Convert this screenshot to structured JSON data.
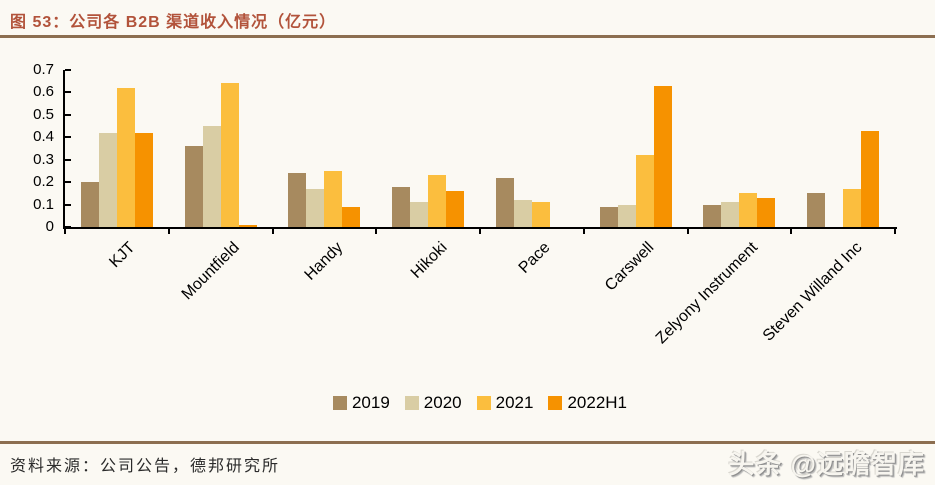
{
  "figure": {
    "title": "图 53：公司各 B2B 渠道收入情况（亿元）",
    "source_note": "资料来源：公司公告，德邦研究所",
    "watermark": "头条 @远瞻智库"
  },
  "colors": {
    "title": "#B2533B",
    "rule": "#8C6E50",
    "background": "#FBF9F3",
    "axis": "#000000"
  },
  "chart_data": {
    "type": "bar",
    "title": "公司各 B2B 渠道收入情况（亿元）",
    "categories": [
      "KJT",
      "Mountfield",
      "Handy",
      "Hikoki",
      "Pace",
      "Carswell",
      "Zelyony Instrument",
      "Steven Willand Inc"
    ],
    "series": [
      {
        "name": "2019",
        "color": "#A78A5F",
        "values": [
          0.2,
          0.36,
          0.24,
          0.18,
          0.22,
          0.09,
          0.1,
          0.15
        ]
      },
      {
        "name": "2020",
        "color": "#D9CDA4",
        "values": [
          0.42,
          0.45,
          0.17,
          0.11,
          0.12,
          0.1,
          0.11,
          0
        ]
      },
      {
        "name": "2021",
        "color": "#FBBE3E",
        "values": [
          0.62,
          0.64,
          0.25,
          0.23,
          0.11,
          0.32,
          0.15,
          0.17
        ]
      },
      {
        "name": "2022H1",
        "color": "#F69200",
        "values": [
          0.42,
          0.01,
          0.09,
          0.16,
          0,
          0.63,
          0.13,
          0.43
        ]
      }
    ],
    "ylim": [
      0,
      0.7
    ],
    "yticks": [
      0,
      0.1,
      0.2,
      0.3,
      0.4,
      0.5,
      0.6,
      0.7
    ],
    "xlabel": "",
    "ylabel": "",
    "grid": false,
    "legend_position": "bottom"
  }
}
